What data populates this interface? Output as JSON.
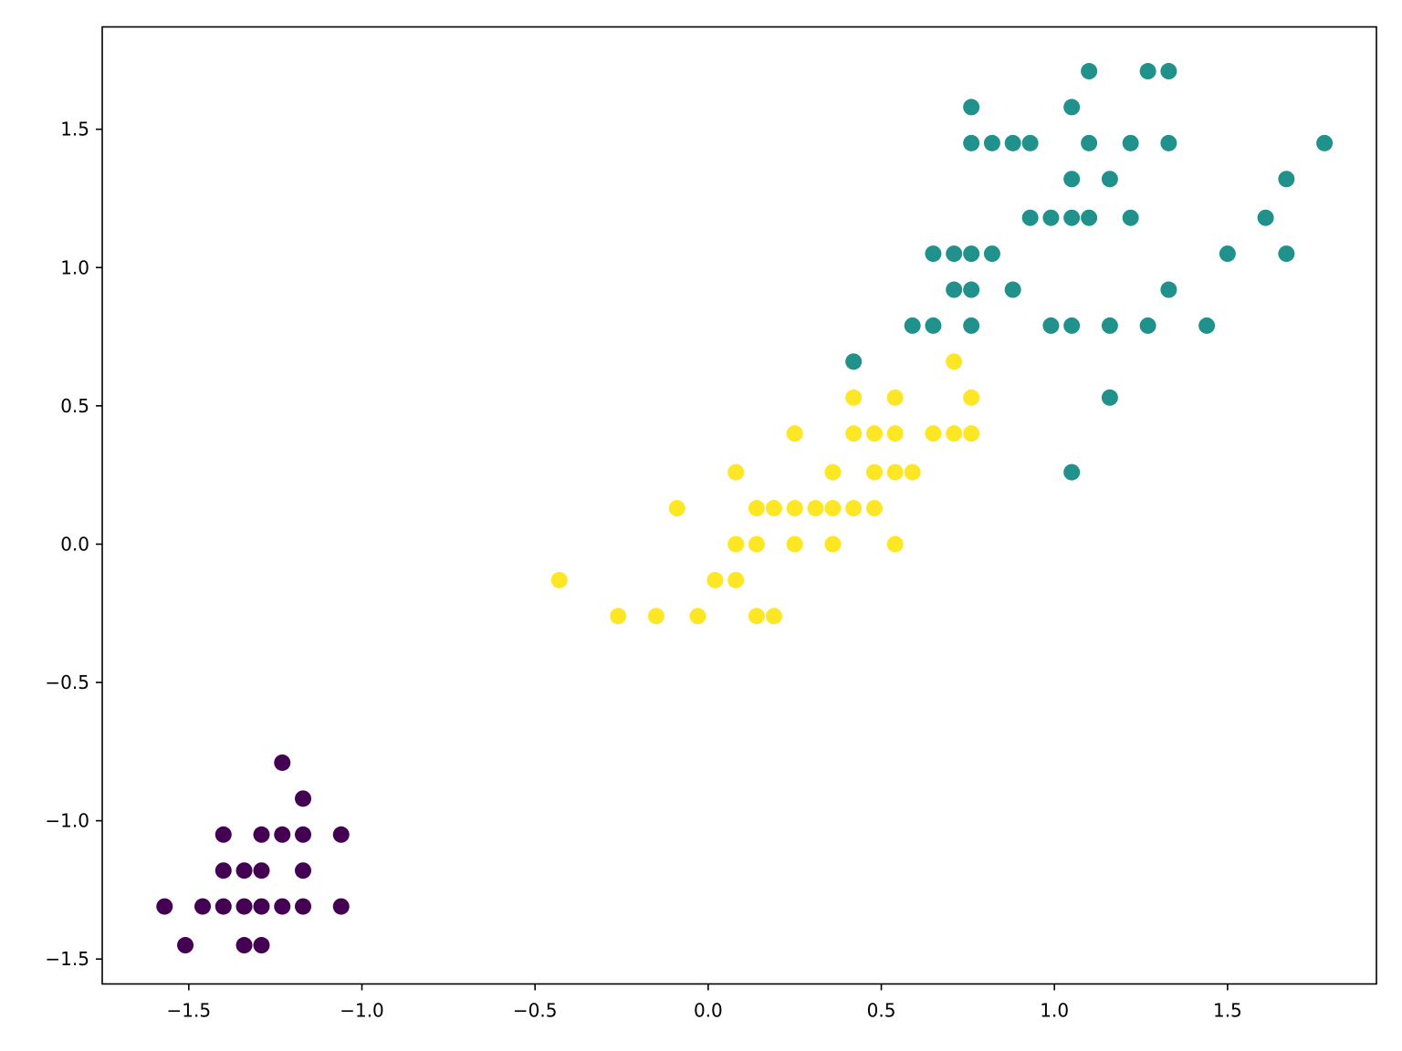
{
  "chart_data": {
    "type": "scatter",
    "title": "",
    "xlabel": "",
    "ylabel": "",
    "xlim": [
      -1.75,
      1.93
    ],
    "ylim": [
      -1.59,
      1.87
    ],
    "grid": false,
    "legend": "none",
    "xticks": [
      -1.5,
      -1.0,
      -0.5,
      0.0,
      0.5,
      1.0,
      1.5
    ],
    "yticks": [
      -1.5,
      -1.0,
      -0.5,
      0.0,
      0.5,
      1.0,
      1.5
    ],
    "xtick_labels": [
      "−1.5",
      "−1.0",
      "−0.5",
      "0.0",
      "0.5",
      "1.0",
      "1.5"
    ],
    "ytick_labels": [
      "−1.5",
      "−1.0",
      "−0.5",
      "0.0",
      "0.5",
      "1.0",
      "1.5"
    ],
    "series": [
      {
        "color": "#440154",
        "points": [
          [
            -1.57,
            -1.31
          ],
          [
            -1.51,
            -1.45
          ],
          [
            -1.46,
            -1.31
          ],
          [
            -1.4,
            -1.31
          ],
          [
            -1.4,
            -1.18
          ],
          [
            -1.4,
            -1.05
          ],
          [
            -1.34,
            -1.31
          ],
          [
            -1.34,
            -1.18
          ],
          [
            -1.34,
            -1.45
          ],
          [
            -1.29,
            -1.31
          ],
          [
            -1.29,
            -1.18
          ],
          [
            -1.29,
            -1.05
          ],
          [
            -1.29,
            -1.45
          ],
          [
            -1.23,
            -1.31
          ],
          [
            -1.23,
            -1.05
          ],
          [
            -1.23,
            -0.79
          ],
          [
            -1.17,
            -1.31
          ],
          [
            -1.17,
            -1.18
          ],
          [
            -1.17,
            -1.05
          ],
          [
            -1.17,
            -0.92
          ],
          [
            -1.06,
            -1.31
          ],
          [
            -1.06,
            -1.05
          ]
        ]
      },
      {
        "color": "#fde725",
        "points": [
          [
            -0.43,
            -0.13
          ],
          [
            -0.26,
            -0.26
          ],
          [
            -0.15,
            -0.26
          ],
          [
            -0.09,
            0.13
          ],
          [
            -0.03,
            -0.26
          ],
          [
            0.02,
            -0.13
          ],
          [
            0.08,
            0.0
          ],
          [
            0.08,
            0.26
          ],
          [
            0.08,
            -0.13
          ],
          [
            0.14,
            0.13
          ],
          [
            0.14,
            0.0
          ],
          [
            0.14,
            -0.26
          ],
          [
            0.19,
            0.13
          ],
          [
            0.19,
            -0.26
          ],
          [
            0.25,
            0.13
          ],
          [
            0.25,
            0.4
          ],
          [
            0.25,
            0.0
          ],
          [
            0.31,
            0.13
          ],
          [
            0.36,
            0.13
          ],
          [
            0.36,
            0.26
          ],
          [
            0.36,
            0.0
          ],
          [
            0.42,
            0.53
          ],
          [
            0.42,
            0.4
          ],
          [
            0.42,
            0.13
          ],
          [
            0.48,
            0.4
          ],
          [
            0.48,
            0.26
          ],
          [
            0.48,
            0.13
          ],
          [
            0.54,
            0.53
          ],
          [
            0.54,
            0.4
          ],
          [
            0.54,
            0.26
          ],
          [
            0.54,
            0.0
          ],
          [
            0.59,
            0.26
          ],
          [
            0.65,
            0.4
          ],
          [
            0.71,
            0.66
          ],
          [
            0.71,
            0.4
          ],
          [
            0.76,
            0.53
          ],
          [
            0.76,
            0.4
          ]
        ]
      },
      {
        "color": "#21918c",
        "points": [
          [
            0.42,
            0.66
          ],
          [
            0.59,
            0.79
          ],
          [
            0.65,
            1.05
          ],
          [
            0.65,
            0.79
          ],
          [
            0.71,
            1.05
          ],
          [
            0.71,
            0.92
          ],
          [
            0.76,
            1.58
          ],
          [
            0.76,
            1.45
          ],
          [
            0.76,
            1.05
          ],
          [
            0.76,
            0.92
          ],
          [
            0.76,
            0.79
          ],
          [
            0.82,
            1.45
          ],
          [
            0.82,
            1.05
          ],
          [
            0.88,
            1.45
          ],
          [
            0.88,
            0.92
          ],
          [
            0.93,
            1.45
          ],
          [
            0.93,
            1.18
          ],
          [
            0.99,
            1.18
          ],
          [
            0.99,
            0.79
          ],
          [
            1.05,
            1.58
          ],
          [
            1.05,
            1.32
          ],
          [
            1.05,
            1.18
          ],
          [
            1.05,
            0.79
          ],
          [
            1.05,
            0.26
          ],
          [
            1.1,
            1.71
          ],
          [
            1.1,
            1.45
          ],
          [
            1.1,
            1.18
          ],
          [
            1.16,
            1.32
          ],
          [
            1.16,
            0.79
          ],
          [
            1.16,
            0.53
          ],
          [
            1.22,
            1.45
          ],
          [
            1.22,
            1.18
          ],
          [
            1.27,
            1.71
          ],
          [
            1.27,
            0.79
          ],
          [
            1.33,
            1.71
          ],
          [
            1.33,
            1.45
          ],
          [
            1.33,
            0.92
          ],
          [
            1.44,
            0.79
          ],
          [
            1.5,
            1.05
          ],
          [
            1.61,
            1.18
          ],
          [
            1.67,
            1.32
          ],
          [
            1.67,
            1.05
          ],
          [
            1.78,
            1.45
          ]
        ]
      }
    ]
  }
}
